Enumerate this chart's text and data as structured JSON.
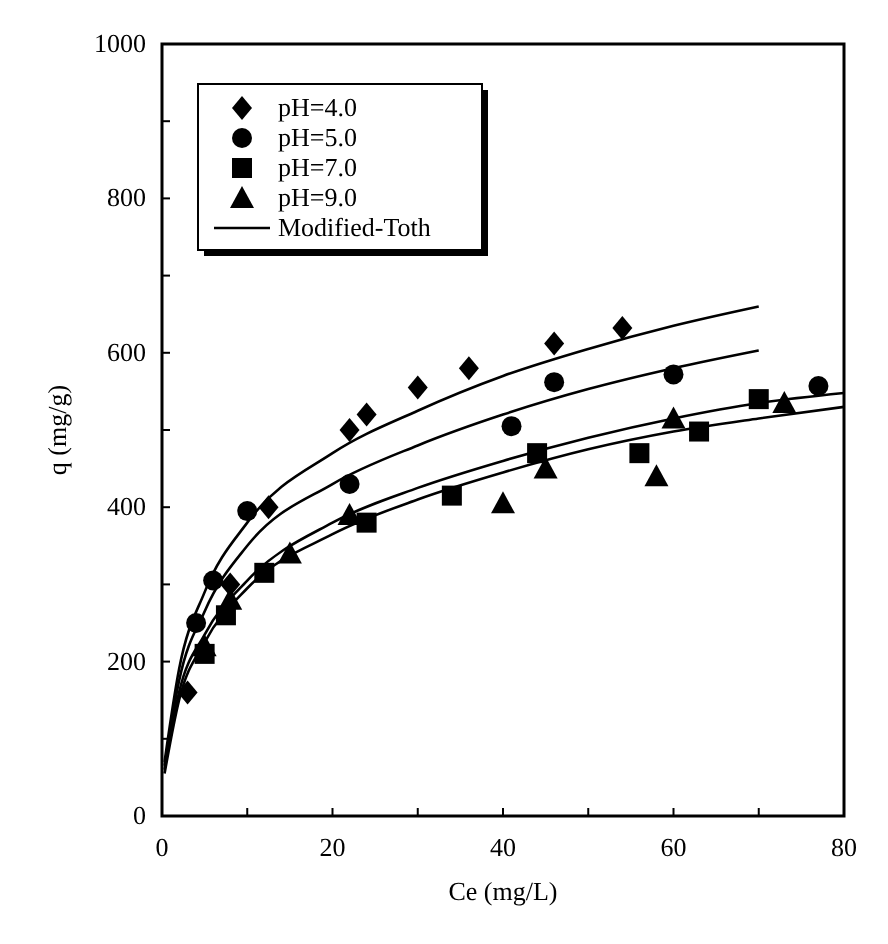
{
  "chart_data": {
    "type": "scatter",
    "xlabel": "Ce (mg/L)",
    "ylabel": "q (mg/g)",
    "xlim": [
      0,
      80
    ],
    "ylim": [
      0,
      1000
    ],
    "xticks": [
      0,
      {
        "value": 10,
        "label": null
      },
      20,
      {
        "value": 30,
        "label": null
      },
      40,
      {
        "value": 50,
        "label": null
      },
      60,
      {
        "value": 70,
        "label": null
      },
      80
    ],
    "yticks": [
      0,
      {
        "value": 100,
        "label": null
      },
      200,
      {
        "value": 300,
        "label": null
      },
      400,
      {
        "value": 500,
        "label": null
      },
      600,
      {
        "value": 700,
        "label": null
      },
      800,
      {
        "value": 900,
        "label": null
      },
      1000
    ],
    "legend": "top left",
    "grid": false,
    "series": [
      {
        "name": "pH=4.0",
        "color": "#000000",
        "marker": "diamond",
        "x": [
          3,
          8,
          12.5,
          22,
          24,
          30,
          36,
          46,
          54
        ],
        "values": [
          160,
          300,
          400,
          500,
          520,
          555,
          580,
          612,
          632
        ]
      },
      {
        "name": "pH=5.0",
        "color": "#000000",
        "marker": "circle",
        "x": [
          4,
          6,
          10,
          22,
          41,
          46,
          60,
          77
        ],
        "values": [
          250,
          305,
          395,
          430,
          505,
          562,
          572,
          557
        ]
      },
      {
        "name": "pH=7.0",
        "color": "#000000",
        "marker": "square",
        "x": [
          5,
          7.5,
          12,
          24,
          34,
          44,
          56,
          63,
          70
        ],
        "values": [
          210,
          260,
          315,
          380,
          415,
          470,
          470,
          498,
          540
        ]
      },
      {
        "name": "pH=9.0",
        "color": "#000000",
        "marker": "triangle",
        "x": [
          5,
          8,
          15,
          22,
          40,
          45,
          58,
          60,
          73
        ],
        "values": [
          220,
          280,
          340,
          390,
          405,
          450,
          440,
          515,
          535
        ]
      },
      {
        "name": "Modified-Toth",
        "type": "line",
        "color": "#000000",
        "line_style": "solid",
        "marker": "none",
        "x": [
          0.3,
          2,
          5,
          10,
          20,
          30,
          40,
          50,
          60,
          70
        ],
        "values": [
          70,
          190,
          290,
          380,
          470,
          525,
          570,
          605,
          635,
          660
        ]
      },
      {
        "type": "line",
        "color": "#000000",
        "line_style": "solid",
        "marker": "none",
        "x": [
          0.3,
          2,
          5,
          10,
          20,
          30,
          40,
          50,
          60,
          70
        ],
        "values": [
          65,
          175,
          265,
          350,
          430,
          480,
          520,
          553,
          580,
          603
        ]
      },
      {
        "type": "line",
        "color": "#000000",
        "line_style": "solid",
        "marker": "none",
        "x": [
          0.3,
          2,
          5,
          10,
          20,
          30,
          40,
          50,
          60,
          70,
          80
        ],
        "values": [
          60,
          160,
          235,
          305,
          380,
          425,
          460,
          490,
          515,
          535,
          548
        ]
      },
      {
        "type": "line",
        "color": "#000000",
        "line_style": "solid",
        "marker": "none",
        "x": [
          0.3,
          2,
          5,
          10,
          20,
          30,
          40,
          50,
          60,
          70,
          80
        ],
        "values": [
          55,
          150,
          225,
          295,
          365,
          410,
          445,
          475,
          498,
          515,
          530
        ]
      }
    ]
  }
}
